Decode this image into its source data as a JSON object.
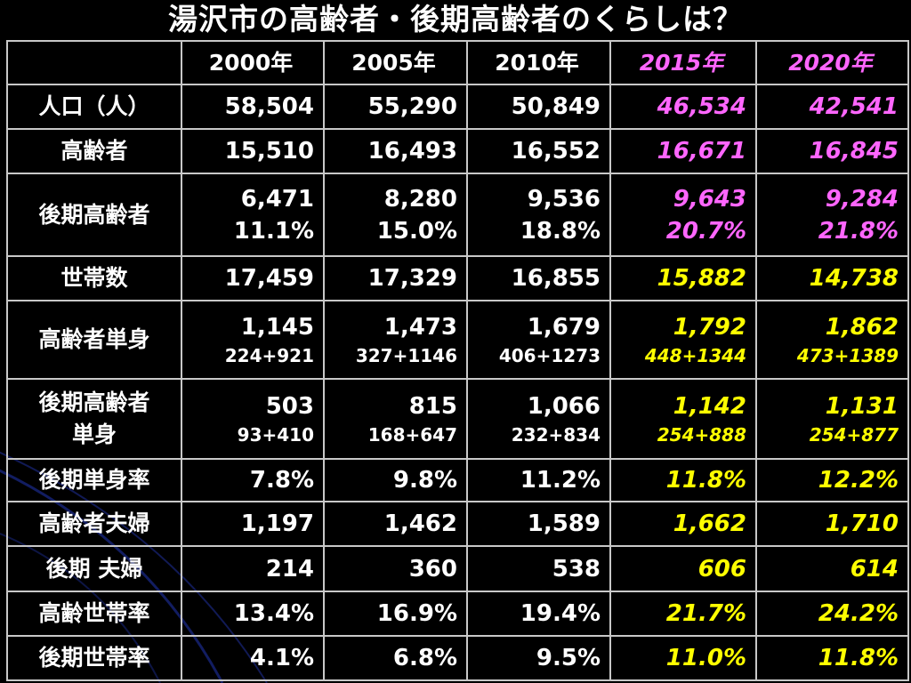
{
  "title": "湯沢市の高齢者・後期高齢者のくらしは？",
  "colors": {
    "background": "#000000",
    "text": "#ffffff",
    "projection_purple": "#ff66ff",
    "projection_yellow": "#ffff00",
    "border": "#c8c8c8"
  },
  "header": {
    "blank": "",
    "cols": [
      "2000年",
      "2005年",
      "2010年",
      "2015年",
      "2020年"
    ]
  },
  "rows": [
    {
      "label": "人口（人）",
      "values": [
        "58,504",
        "55,290",
        "50,849",
        "46,534",
        "42,541"
      ]
    },
    {
      "label": "高齢者",
      "values": [
        "15,510",
        "16,493",
        "16,552",
        "16,671",
        "16,845"
      ]
    },
    {
      "label": "後期高齢者",
      "values": [
        "6,471",
        "8,280",
        "9,536",
        "9,643",
        "9,284"
      ],
      "subs": [
        "11.1%",
        "15.0%",
        "18.8%",
        "20.7%",
        "21.8%"
      ]
    },
    {
      "label": "世帯数",
      "values": [
        "17,459",
        "17,329",
        "16,855",
        "15,882",
        "14,738"
      ]
    },
    {
      "label": "高齢者単身",
      "values": [
        "1,145",
        "1,473",
        "1,679",
        "1,792",
        "1,862"
      ],
      "subs": [
        "224+921",
        "327+1146",
        "406+1273",
        "448+1344",
        "473+1389"
      ]
    },
    {
      "label_line1": "後期高齢者",
      "label_line2": "単身",
      "values": [
        "503",
        "815",
        "1,066",
        "1,142",
        "1,131"
      ],
      "subs": [
        "93+410",
        "168+647",
        "232+834",
        "254+888",
        "254+877"
      ]
    },
    {
      "label": "後期単身率",
      "values": [
        "7.8%",
        "9.8%",
        "11.2%",
        "11.8%",
        "12.2%"
      ]
    },
    {
      "label": "高齢者夫婦",
      "values": [
        "1,197",
        "1,462",
        "1,589",
        "1,662",
        "1,710"
      ]
    },
    {
      "label": "後期 夫婦",
      "values": [
        "214",
        "360",
        "538",
        "606",
        "614"
      ]
    },
    {
      "label": "高齢世帯率",
      "values": [
        "13.4%",
        "16.9%",
        "19.4%",
        "21.7%",
        "24.2%"
      ]
    },
    {
      "label": "後期世帯率",
      "values": [
        "4.1%",
        "6.8%",
        "9.5%",
        "11.0%",
        "11.8%"
      ]
    }
  ]
}
